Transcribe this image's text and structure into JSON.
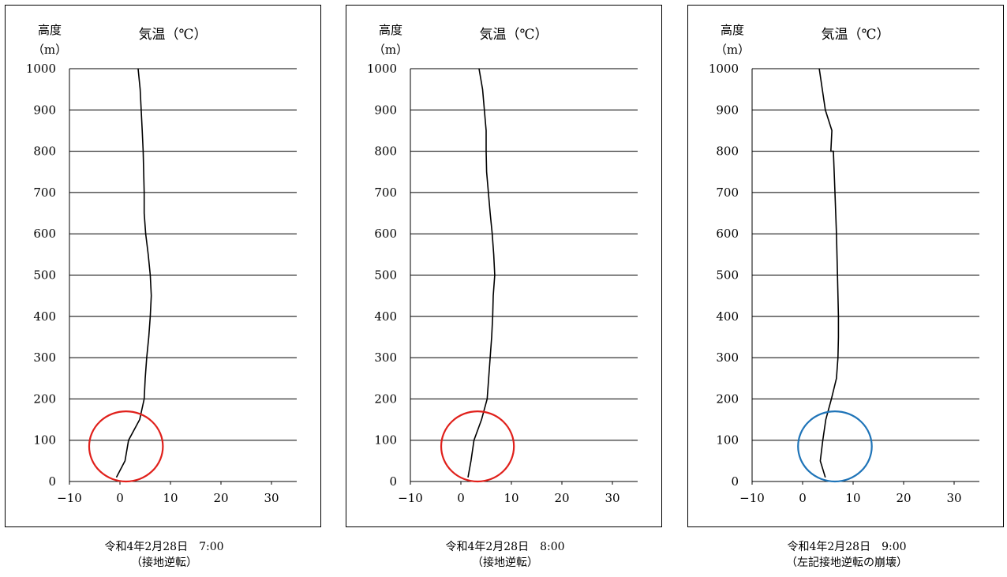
{
  "chart_data": [
    {
      "type": "line",
      "title": "気温（℃）",
      "ylabel_line1": "高度",
      "ylabel_line2": "（m）",
      "xlim": [
        -10,
        35
      ],
      "ylim": [
        0,
        1000
      ],
      "xticks": [
        "−10",
        "0",
        "10",
        "20",
        "30"
      ],
      "yticks": [
        "0",
        "100",
        "200",
        "300",
        "400",
        "500",
        "600",
        "700",
        "800",
        "900",
        "1000"
      ],
      "grid": "horizontal",
      "series": [
        {
          "x": [
            -0.7,
            1.0,
            1.7,
            3.9,
            4.8,
            5.0,
            5.3,
            5.7,
            6.0,
            6.2,
            6.0,
            5.6,
            5.1,
            4.8,
            4.8,
            4.6,
            4.4,
            4.0,
            3.6
          ],
          "y": [
            10,
            50,
            100,
            150,
            200,
            250,
            300,
            350,
            400,
            450,
            500,
            550,
            600,
            650,
            700,
            800,
            850,
            950,
            1000
          ]
        }
      ],
      "circle": {
        "center": [
          1.2,
          85
        ],
        "radius_x": 7.3,
        "radius_y": 85,
        "color": "#e0201b"
      },
      "caption_line1": "令和4年2月28日　7:00",
      "caption_line2": "（接地逆転）"
    },
    {
      "type": "line",
      "title": "気温（℃）",
      "ylabel_line1": "高度",
      "ylabel_line2": "（m）",
      "xlim": [
        -10,
        35
      ],
      "ylim": [
        0,
        1000
      ],
      "xticks": [
        "−10",
        "0",
        "10",
        "20",
        "30"
      ],
      "yticks": [
        "0",
        "100",
        "200",
        "300",
        "400",
        "500",
        "600",
        "700",
        "800",
        "900",
        "1000"
      ],
      "grid": "horizontal",
      "series": [
        {
          "x": [
            1.4,
            2.0,
            2.6,
            4.1,
            5.2,
            5.5,
            5.8,
            6.1,
            6.3,
            6.4,
            6.7,
            6.5,
            6.2,
            5.8,
            5.1,
            5.0,
            5.0,
            4.3,
            3.6
          ],
          "y": [
            10,
            50,
            100,
            150,
            200,
            250,
            300,
            350,
            400,
            450,
            500,
            550,
            600,
            650,
            750,
            800,
            850,
            950,
            1000
          ]
        }
      ],
      "circle": {
        "center": [
          3.3,
          85
        ],
        "radius_x": 7.2,
        "radius_y": 85,
        "color": "#e0201b"
      },
      "caption_line1": "令和4年2月28日　8:00",
      "caption_line2": "（接地逆転）"
    },
    {
      "type": "line",
      "title": "気温（℃）",
      "ylabel_line1": "高度",
      "ylabel_line2": "（m）",
      "xlim": [
        -10,
        35
      ],
      "ylim": [
        0,
        1000
      ],
      "xticks": [
        "−10",
        "0",
        "10",
        "20",
        "30"
      ],
      "yticks": [
        "0",
        "100",
        "200",
        "300",
        "400",
        "500",
        "600",
        "700",
        "800",
        "900",
        "1000"
      ],
      "grid": "horizontal",
      "series": [
        {
          "x": [
            4.5,
            3.5,
            4.0,
            4.6,
            5.7,
            6.7,
            7.0,
            7.1,
            7.1,
            7.0,
            6.9,
            6.7,
            6.4,
            6.1,
            5.6,
            5.8,
            4.5,
            3.3
          ],
          "y": [
            10,
            50,
            100,
            150,
            200,
            250,
            300,
            350,
            400,
            450,
            500,
            600,
            700,
            800,
            800,
            850,
            900,
            1000
          ]
        }
      ],
      "circle": {
        "center": [
          6.4,
          85
        ],
        "radius_x": 7.3,
        "radius_y": 85,
        "color": "#1f74b8"
      },
      "caption_line1": "令和4年2月28日　9:00",
      "caption_line2": "（左記接地逆転の崩壊）"
    }
  ]
}
